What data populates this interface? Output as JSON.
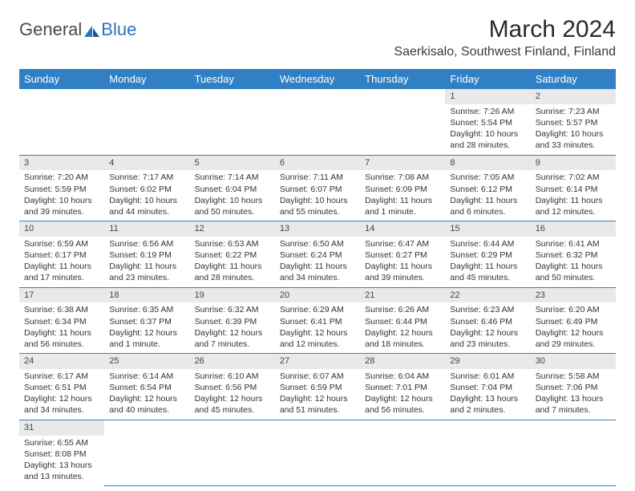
{
  "brand": {
    "general": "General",
    "blue": "Blue"
  },
  "title": "March 2024",
  "location": "Saerkisalo, Southwest Finland, Finland",
  "colors": {
    "header_bg": "#3180c4",
    "header_text": "#ffffff",
    "daynum_bg": "#e9e9e9",
    "border": "#3180c4",
    "logo_blue": "#2f72b8"
  },
  "weekdays": [
    "Sunday",
    "Monday",
    "Tuesday",
    "Wednesday",
    "Thursday",
    "Friday",
    "Saturday"
  ],
  "weeks": [
    [
      null,
      null,
      null,
      null,
      null,
      {
        "n": "1",
        "sr": "7:26 AM",
        "ss": "5:54 PM",
        "dl": "10 hours and 28 minutes."
      },
      {
        "n": "2",
        "sr": "7:23 AM",
        "ss": "5:57 PM",
        "dl": "10 hours and 33 minutes."
      }
    ],
    [
      {
        "n": "3",
        "sr": "7:20 AM",
        "ss": "5:59 PM",
        "dl": "10 hours and 39 minutes."
      },
      {
        "n": "4",
        "sr": "7:17 AM",
        "ss": "6:02 PM",
        "dl": "10 hours and 44 minutes."
      },
      {
        "n": "5",
        "sr": "7:14 AM",
        "ss": "6:04 PM",
        "dl": "10 hours and 50 minutes."
      },
      {
        "n": "6",
        "sr": "7:11 AM",
        "ss": "6:07 PM",
        "dl": "10 hours and 55 minutes."
      },
      {
        "n": "7",
        "sr": "7:08 AM",
        "ss": "6:09 PM",
        "dl": "11 hours and 1 minute."
      },
      {
        "n": "8",
        "sr": "7:05 AM",
        "ss": "6:12 PM",
        "dl": "11 hours and 6 minutes."
      },
      {
        "n": "9",
        "sr": "7:02 AM",
        "ss": "6:14 PM",
        "dl": "11 hours and 12 minutes."
      }
    ],
    [
      {
        "n": "10",
        "sr": "6:59 AM",
        "ss": "6:17 PM",
        "dl": "11 hours and 17 minutes."
      },
      {
        "n": "11",
        "sr": "6:56 AM",
        "ss": "6:19 PM",
        "dl": "11 hours and 23 minutes."
      },
      {
        "n": "12",
        "sr": "6:53 AM",
        "ss": "6:22 PM",
        "dl": "11 hours and 28 minutes."
      },
      {
        "n": "13",
        "sr": "6:50 AM",
        "ss": "6:24 PM",
        "dl": "11 hours and 34 minutes."
      },
      {
        "n": "14",
        "sr": "6:47 AM",
        "ss": "6:27 PM",
        "dl": "11 hours and 39 minutes."
      },
      {
        "n": "15",
        "sr": "6:44 AM",
        "ss": "6:29 PM",
        "dl": "11 hours and 45 minutes."
      },
      {
        "n": "16",
        "sr": "6:41 AM",
        "ss": "6:32 PM",
        "dl": "11 hours and 50 minutes."
      }
    ],
    [
      {
        "n": "17",
        "sr": "6:38 AM",
        "ss": "6:34 PM",
        "dl": "11 hours and 56 minutes."
      },
      {
        "n": "18",
        "sr": "6:35 AM",
        "ss": "6:37 PM",
        "dl": "12 hours and 1 minute."
      },
      {
        "n": "19",
        "sr": "6:32 AM",
        "ss": "6:39 PM",
        "dl": "12 hours and 7 minutes."
      },
      {
        "n": "20",
        "sr": "6:29 AM",
        "ss": "6:41 PM",
        "dl": "12 hours and 12 minutes."
      },
      {
        "n": "21",
        "sr": "6:26 AM",
        "ss": "6:44 PM",
        "dl": "12 hours and 18 minutes."
      },
      {
        "n": "22",
        "sr": "6:23 AM",
        "ss": "6:46 PM",
        "dl": "12 hours and 23 minutes."
      },
      {
        "n": "23",
        "sr": "6:20 AM",
        "ss": "6:49 PM",
        "dl": "12 hours and 29 minutes."
      }
    ],
    [
      {
        "n": "24",
        "sr": "6:17 AM",
        "ss": "6:51 PM",
        "dl": "12 hours and 34 minutes."
      },
      {
        "n": "25",
        "sr": "6:14 AM",
        "ss": "6:54 PM",
        "dl": "12 hours and 40 minutes."
      },
      {
        "n": "26",
        "sr": "6:10 AM",
        "ss": "6:56 PM",
        "dl": "12 hours and 45 minutes."
      },
      {
        "n": "27",
        "sr": "6:07 AM",
        "ss": "6:59 PM",
        "dl": "12 hours and 51 minutes."
      },
      {
        "n": "28",
        "sr": "6:04 AM",
        "ss": "7:01 PM",
        "dl": "12 hours and 56 minutes."
      },
      {
        "n": "29",
        "sr": "6:01 AM",
        "ss": "7:04 PM",
        "dl": "13 hours and 2 minutes."
      },
      {
        "n": "30",
        "sr": "5:58 AM",
        "ss": "7:06 PM",
        "dl": "13 hours and 7 minutes."
      }
    ],
    [
      {
        "n": "31",
        "sr": "6:55 AM",
        "ss": "8:08 PM",
        "dl": "13 hours and 13 minutes."
      },
      null,
      null,
      null,
      null,
      null,
      null
    ]
  ],
  "labels": {
    "sunrise": "Sunrise: ",
    "sunset": "Sunset: ",
    "daylight": "Daylight: "
  }
}
